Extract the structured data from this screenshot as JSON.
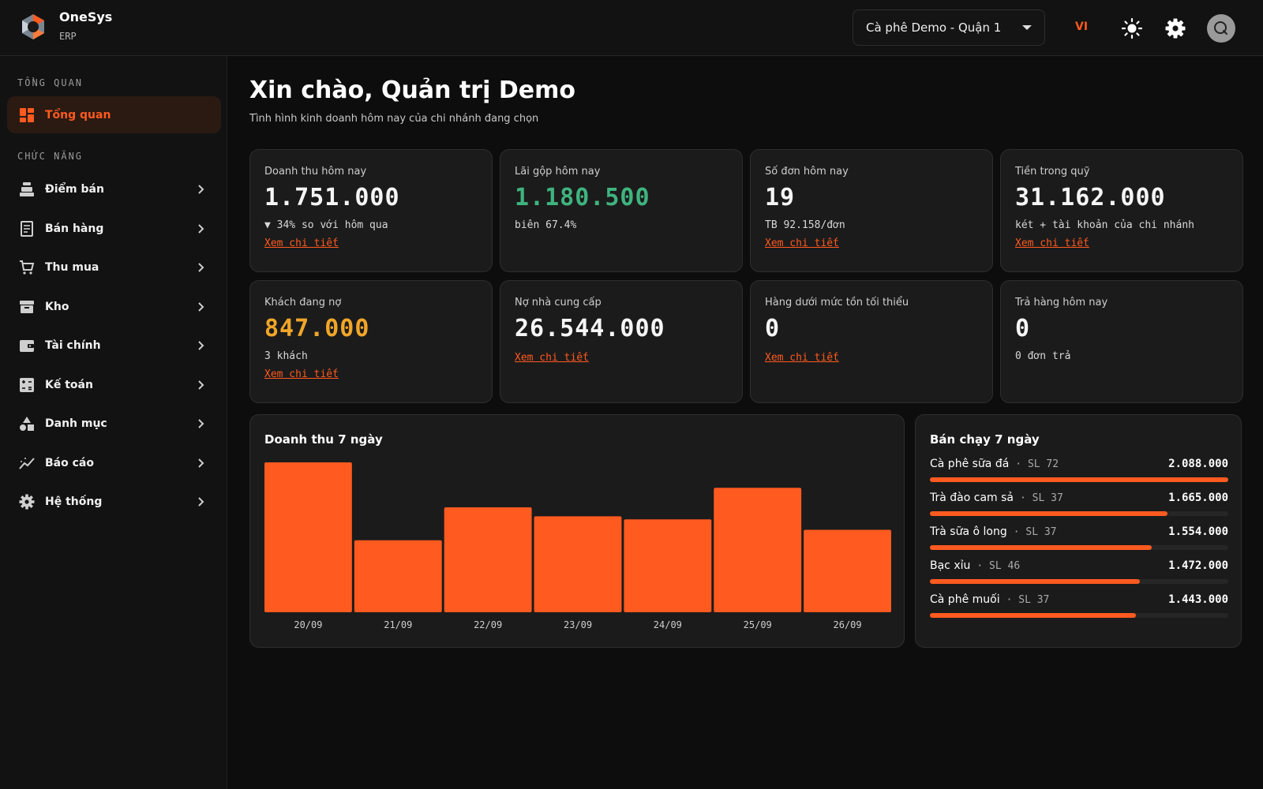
{
  "app": {
    "name": "OneSys",
    "subtitle": "ERP"
  },
  "header": {
    "branch": "Cà phê Demo - Quận 1",
    "language": "VI"
  },
  "sidebar": {
    "overview_section": "TỔNG QUAN",
    "overview_item": {
      "label": "Tổng quan",
      "icon": "dashboard-icon"
    },
    "functions_section": "CHỨC NĂNG",
    "items": [
      {
        "label": "Điểm bán",
        "icon": "cash-register-icon"
      },
      {
        "label": "Bán hàng",
        "icon": "receipt-icon"
      },
      {
        "label": "Thu mua",
        "icon": "cart-icon"
      },
      {
        "label": "Kho",
        "icon": "archive-icon"
      },
      {
        "label": "Tài chính",
        "icon": "wallet-icon"
      },
      {
        "label": "Kế toán",
        "icon": "calculator-icon"
      },
      {
        "label": "Danh mục",
        "icon": "category-icon"
      },
      {
        "label": "Báo cáo",
        "icon": "chart-icon"
      },
      {
        "label": "Hệ thống",
        "icon": "gear-icon"
      }
    ]
  },
  "main": {
    "greeting": "Xin chào, Quản trị Demo",
    "subtitle": "Tình hình kinh doanh hôm nay của chi nhánh đang chọn",
    "link_label": "Xem chi tiết",
    "cards": [
      {
        "label": "Doanh thu hôm nay",
        "value": "1.751.000",
        "note": "▼ 34% so với hôm qua",
        "has_link": true,
        "color": "#f5f5f5"
      },
      {
        "label": "Lãi gộp hôm nay",
        "value": "1.180.500",
        "note": "biên 67.4%",
        "has_link": false,
        "color": "#3fb37f"
      },
      {
        "label": "Số đơn hôm nay",
        "value": "19",
        "note": "TB 92.158/đơn",
        "has_link": true,
        "color": "#f5f5f5"
      },
      {
        "label": "Tiền trong quỹ",
        "value": "31.162.000",
        "note": "két + tài khoản của chi nhánh",
        "has_link": true,
        "color": "#f5f5f5"
      },
      {
        "label": "Khách đang nợ",
        "value": "847.000",
        "note": "3 khách",
        "has_link": true,
        "color": "#f0a629"
      },
      {
        "label": "Nợ nhà cung cấp",
        "value": "26.544.000",
        "note": "",
        "has_link": true,
        "color": "#f5f5f5"
      },
      {
        "label": "Hàng dưới mức tồn tối thiểu",
        "value": "0",
        "note": "",
        "has_link": true,
        "color": "#f5f5f5"
      },
      {
        "label": "Trả hàng hôm nay",
        "value": "0",
        "note": "0 đơn trả",
        "has_link": false,
        "color": "#f5f5f5"
      }
    ],
    "revenue_title": "Doanh thu 7 ngày",
    "top_title": "Bán chạy 7 ngày",
    "top_items": [
      {
        "name": "Cà phê sữa đá",
        "qty": "SL 72",
        "amount": "2.088.000",
        "value": 2088000
      },
      {
        "name": "Trà đào cam sả",
        "qty": "SL 37",
        "amount": "1.665.000",
        "value": 1665000
      },
      {
        "name": "Trà sữa ô long",
        "qty": "SL 37",
        "amount": "1.554.000",
        "value": 1554000
      },
      {
        "name": "Bạc xỉu",
        "qty": "SL 46",
        "amount": "1.472.000",
        "value": 1472000
      },
      {
        "name": "Cà phê muối",
        "qty": "SL 37",
        "amount": "1.443.000",
        "value": 1443000
      }
    ]
  },
  "colors": {
    "accent": "#ff5a1f",
    "positive": "#3fb37f",
    "warning": "#f0a629"
  },
  "chart_data": {
    "type": "bar",
    "title": "Doanh thu 7 ngày",
    "categories": [
      "20/09",
      "21/09",
      "22/09",
      "23/09",
      "24/09",
      "25/09",
      "26/09"
    ],
    "values": [
      100,
      48,
      70,
      64,
      62,
      83,
      55
    ],
    "color": "#ff5a1f"
  }
}
